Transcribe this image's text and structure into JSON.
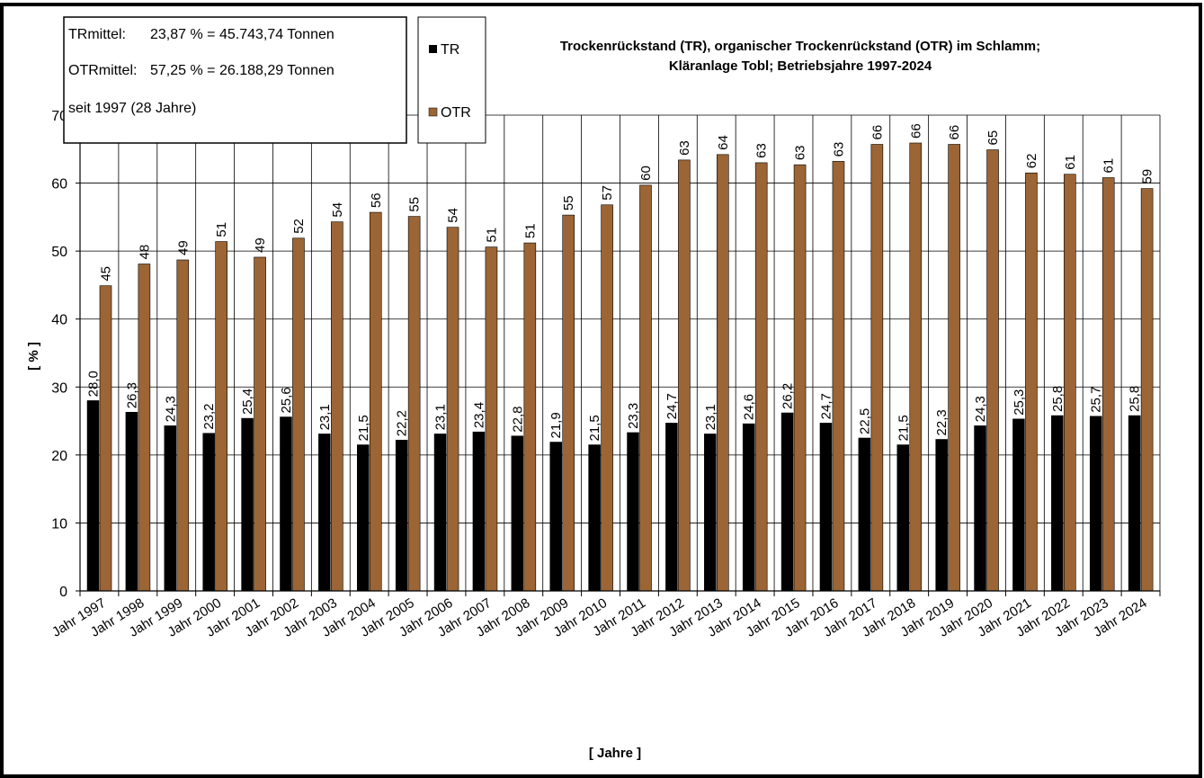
{
  "colors": {
    "tr": "#000000",
    "otr": "#9c6535",
    "grid": "#000000",
    "frame": "#000000"
  },
  "chart_data": {
    "type": "bar",
    "title": "Trockenrückstand (TR), organischer Trockenrückstand (OTR) im Schlamm;",
    "subtitle": "Kläranlage Tobl; Betriebsjahre 1997-2024",
    "xlabel": "[ Jahre ]",
    "ylabel": "[ % ]",
    "ylim": [
      0,
      70
    ],
    "yticks": [
      "0",
      "10",
      "20",
      "30",
      "40",
      "50",
      "60",
      "70"
    ],
    "grid": true,
    "legend_position": "top-left",
    "categories": [
      "Jahr 1997",
      "Jahr 1998",
      "Jahr 1999",
      "Jahr 2000",
      "Jahr 2001",
      "Jahr 2002",
      "Jahr 2003",
      "Jahr 2004",
      "Jahr 2005",
      "Jahr 2006",
      "Jahr 2007",
      "Jahr 2008",
      "Jahr 2009",
      "Jahr 2010",
      "Jahr 2011",
      "Jahr 2012",
      "Jahr 2013",
      "Jahr 2014",
      "Jahr 2015",
      "Jahr 2016",
      "Jahr 2017",
      "Jahr 2018",
      "Jahr 2019",
      "Jahr 2020",
      "Jahr 2021",
      "Jahr 2022",
      "Jahr 2023",
      "Jahr 2024"
    ],
    "series": [
      {
        "name": "TR",
        "values": [
          28.0,
          26.3,
          24.3,
          23.2,
          25.4,
          25.6,
          23.1,
          21.5,
          22.2,
          23.1,
          23.4,
          22.8,
          21.9,
          21.5,
          23.3,
          24.7,
          23.1,
          24.6,
          26.2,
          24.7,
          22.5,
          21.5,
          22.3,
          24.3,
          25.3,
          25.8,
          25.7,
          25.8
        ],
        "labels": [
          "28,0",
          "26,3",
          "24,3",
          "23,2",
          "25,4",
          "25,6",
          "23,1",
          "21,5",
          "22,2",
          "23,1",
          "23,4",
          "22,8",
          "21,9",
          "21,5",
          "23,3",
          "24,7",
          "23,1",
          "24,6",
          "26,2",
          "24,7",
          "22,5",
          "21,5",
          "22,3",
          "24,3",
          "25,3",
          "25,8",
          "25,7",
          "25,8"
        ]
      },
      {
        "name": "OTR",
        "values": [
          44.9,
          48.1,
          48.7,
          51.4,
          49.1,
          51.9,
          54.3,
          55.7,
          55.1,
          53.5,
          50.6,
          51.2,
          55.3,
          56.8,
          59.7,
          63.4,
          64.2,
          63.0,
          62.7,
          63.2,
          65.7,
          65.9,
          65.7,
          64.9,
          61.5,
          61.3,
          60.8,
          59.2
        ],
        "labels": [
          "45",
          "48",
          "49",
          "51",
          "49",
          "52",
          "54",
          "56",
          "55",
          "54",
          "51",
          "51",
          "55",
          "57",
          "60",
          "63",
          "64",
          "63",
          "63",
          "63",
          "66",
          "66",
          "66",
          "65",
          "62",
          "61",
          "61",
          "59"
        ]
      }
    ]
  },
  "info_box": {
    "line1_label": "TRmittel:",
    "line1_value": "23,87 % = 45.743,74 Tonnen",
    "line2_label": "OTRmittel:",
    "line2_value": "57,25 % = 26.188,29 Tonnen",
    "line3": "seit 1997 (28 Jahre)"
  },
  "legend": {
    "tr_label": "TR",
    "otr_label": "OTR"
  }
}
